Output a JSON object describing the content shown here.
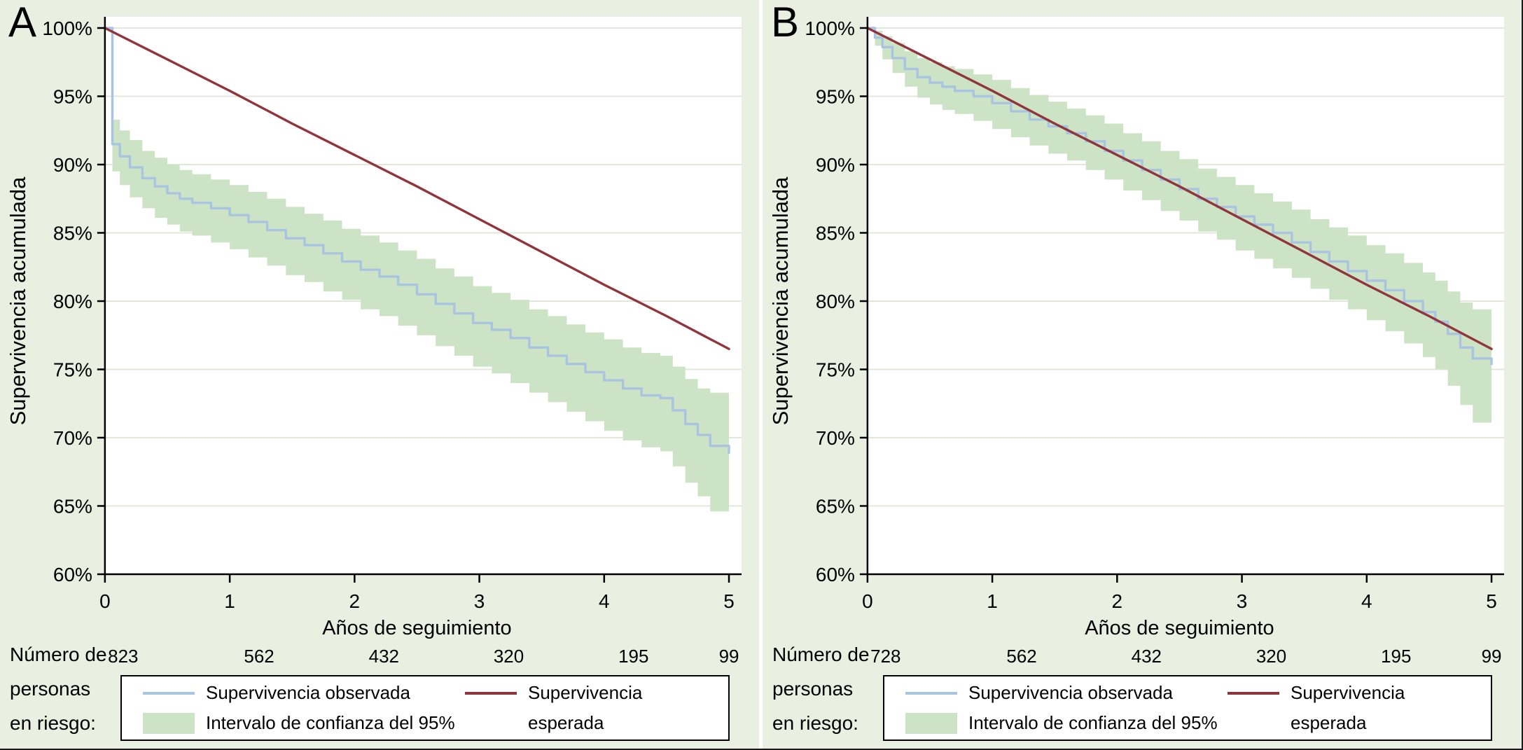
{
  "colors": {
    "background": "#e9efe1",
    "plot_bg": "#ffffff",
    "gridline": "#e2e8d9",
    "observed": "#a9c4e1",
    "expected": "#90353b",
    "band": "#cde3c6",
    "axis": "#000000",
    "legend_border": "#000000"
  },
  "legend": {
    "observed": "Supervivencia observada",
    "ci": "Intervalo de confianza del 95%",
    "expected_line1": "Supervivencia",
    "expected_line2": "esperada"
  },
  "figure": {
    "panels": [
      {
        "label": "A",
        "risk_label_lines": [
          "Número de",
          "personas",
          "en riesgo:"
        ]
      },
      {
        "label": "B",
        "risk_label_lines": [
          "Número de",
          "personas",
          "en riesgo:"
        ]
      }
    ]
  },
  "chart_data": [
    {
      "type": "line",
      "panel_label": "A",
      "xlabel": "Años de seguimiento",
      "ylabel": "Supervivencia acumulada",
      "xlim": [
        0,
        5
      ],
      "ylim": [
        60,
        100
      ],
      "xticks": [
        0,
        1,
        2,
        3,
        4,
        5
      ],
      "yticks": [
        60,
        65,
        70,
        75,
        80,
        85,
        90,
        95,
        100
      ],
      "ytick_suffix": "%",
      "grid": true,
      "legend_position": "bottom",
      "x": [
        0,
        0.06,
        0.12,
        0.2,
        0.3,
        0.4,
        0.5,
        0.6,
        0.7,
        0.85,
        1.0,
        1.15,
        1.3,
        1.45,
        1.6,
        1.75,
        1.9,
        2.05,
        2.2,
        2.35,
        2.5,
        2.65,
        2.8,
        2.95,
        3.1,
        3.25,
        3.4,
        3.55,
        3.7,
        3.85,
        4.0,
        4.15,
        4.3,
        4.45,
        4.55,
        4.65,
        4.75,
        4.85,
        5.0
      ],
      "series": [
        {
          "name": "Supervivencia observada",
          "style": "step",
          "color": "#a9c4e1",
          "y": [
            100,
            91.5,
            90.6,
            89.8,
            89.0,
            88.4,
            87.9,
            87.5,
            87.2,
            86.8,
            86.3,
            85.8,
            85.2,
            84.6,
            84.1,
            83.5,
            82.9,
            82.3,
            81.8,
            81.2,
            80.5,
            79.8,
            79.1,
            78.4,
            77.9,
            77.3,
            76.6,
            76.0,
            75.4,
            74.8,
            74.2,
            73.6,
            73.1,
            72.9,
            72.0,
            71.0,
            70.2,
            69.4,
            68.9
          ]
        },
        {
          "name": "Supervivencia esperada",
          "style": "line",
          "color": "#90353b",
          "x": [
            0,
            0.5,
            1,
            1.5,
            2,
            2.5,
            3,
            3.5,
            4,
            4.5,
            5
          ],
          "y": [
            100,
            97.7,
            95.4,
            93.0,
            90.7,
            88.4,
            86.0,
            83.6,
            81.2,
            78.9,
            76.5
          ]
        }
      ],
      "band": {
        "name": "Intervalo de confianza del 95%",
        "color": "#cde3c6",
        "upper": [
          100,
          93.3,
          92.5,
          91.8,
          91.0,
          90.5,
          90.0,
          89.6,
          89.3,
          88.9,
          88.5,
          88.0,
          87.5,
          86.9,
          86.4,
          85.9,
          85.3,
          84.8,
          84.3,
          83.7,
          83.1,
          82.4,
          81.8,
          81.1,
          80.6,
          80.1,
          79.4,
          78.9,
          78.3,
          77.7,
          77.2,
          76.6,
          76.2,
          76.0,
          75.2,
          74.3,
          73.6,
          73.3,
          73.2
        ],
        "lower": [
          100,
          89.5,
          88.5,
          87.6,
          86.8,
          86.1,
          85.6,
          85.1,
          84.8,
          84.3,
          83.8,
          83.2,
          82.6,
          81.9,
          81.4,
          80.7,
          80.1,
          79.4,
          78.9,
          78.2,
          77.5,
          76.7,
          76.0,
          75.2,
          74.7,
          74.0,
          73.3,
          72.6,
          71.9,
          71.2,
          70.5,
          69.8,
          69.3,
          69.0,
          67.9,
          66.7,
          65.7,
          64.6,
          64.1
        ]
      },
      "at_risk": {
        "label": "Número de personas en riesgo:",
        "x": [
          0,
          1,
          2,
          3,
          4,
          5
        ],
        "values": [
          823,
          562,
          432,
          320,
          195,
          99
        ]
      }
    },
    {
      "type": "line",
      "panel_label": "B",
      "xlabel": "Años de seguimiento",
      "ylabel": "Supervivencia acumulada",
      "xlim": [
        0,
        5
      ],
      "ylim": [
        60,
        100
      ],
      "xticks": [
        0,
        1,
        2,
        3,
        4,
        5
      ],
      "yticks": [
        60,
        65,
        70,
        75,
        80,
        85,
        90,
        95,
        100
      ],
      "ytick_suffix": "%",
      "grid": true,
      "legend_position": "bottom",
      "x": [
        0,
        0.06,
        0.12,
        0.2,
        0.3,
        0.4,
        0.5,
        0.6,
        0.7,
        0.85,
        1.0,
        1.15,
        1.3,
        1.45,
        1.6,
        1.75,
        1.9,
        2.05,
        2.2,
        2.35,
        2.5,
        2.65,
        2.8,
        2.95,
        3.1,
        3.25,
        3.4,
        3.55,
        3.7,
        3.85,
        4.0,
        4.15,
        4.3,
        4.45,
        4.55,
        4.65,
        4.75,
        4.85,
        5.0
      ],
      "series": [
        {
          "name": "Supervivencia observada",
          "style": "step",
          "color": "#a9c4e1",
          "y": [
            100,
            99.3,
            98.6,
            97.8,
            97.0,
            96.4,
            96.0,
            95.7,
            95.4,
            95.0,
            94.5,
            93.9,
            93.3,
            92.8,
            92.3,
            91.7,
            91.0,
            90.3,
            89.6,
            88.9,
            88.2,
            87.5,
            86.9,
            86.2,
            85.6,
            85.0,
            84.3,
            83.6,
            82.9,
            82.2,
            81.5,
            80.8,
            80.0,
            79.2,
            78.5,
            77.6,
            76.6,
            75.8,
            75.4
          ]
        },
        {
          "name": "Supervivencia esperada",
          "style": "line",
          "color": "#90353b",
          "x": [
            0,
            0.5,
            1,
            1.5,
            2,
            2.5,
            3,
            3.5,
            4,
            4.5,
            5
          ],
          "y": [
            100,
            97.7,
            95.4,
            93.0,
            90.7,
            88.4,
            86.0,
            83.6,
            81.2,
            78.9,
            76.5
          ]
        }
      ],
      "band": {
        "name": "Intervalo de confianza del 95%",
        "color": "#cde3c6",
        "upper": [
          100,
          99.8,
          99.4,
          98.9,
          98.3,
          97.8,
          97.5,
          97.2,
          97.0,
          96.6,
          96.2,
          95.6,
          95.1,
          94.6,
          94.1,
          93.6,
          93.0,
          92.3,
          91.7,
          91.0,
          90.4,
          89.7,
          89.1,
          88.5,
          87.9,
          87.3,
          86.7,
          86.0,
          85.4,
          84.8,
          84.1,
          83.5,
          82.8,
          82.1,
          81.5,
          80.7,
          79.9,
          79.4,
          79.2
        ],
        "lower": [
          100,
          98.7,
          97.7,
          96.7,
          95.7,
          94.9,
          94.4,
          94.0,
          93.7,
          93.2,
          92.6,
          92.0,
          91.4,
          90.8,
          90.3,
          89.6,
          88.9,
          88.1,
          87.4,
          86.6,
          85.9,
          85.1,
          84.5,
          83.7,
          83.1,
          82.4,
          81.7,
          80.9,
          80.1,
          79.4,
          78.6,
          77.8,
          76.9,
          75.9,
          75.0,
          73.8,
          72.4,
          71.1,
          70.3
        ]
      },
      "at_risk": {
        "label": "Número de personas en riesgo:",
        "x": [
          0,
          1,
          2,
          3,
          4,
          5
        ],
        "values": [
          728,
          562,
          432,
          320,
          195,
          99
        ]
      }
    }
  ]
}
